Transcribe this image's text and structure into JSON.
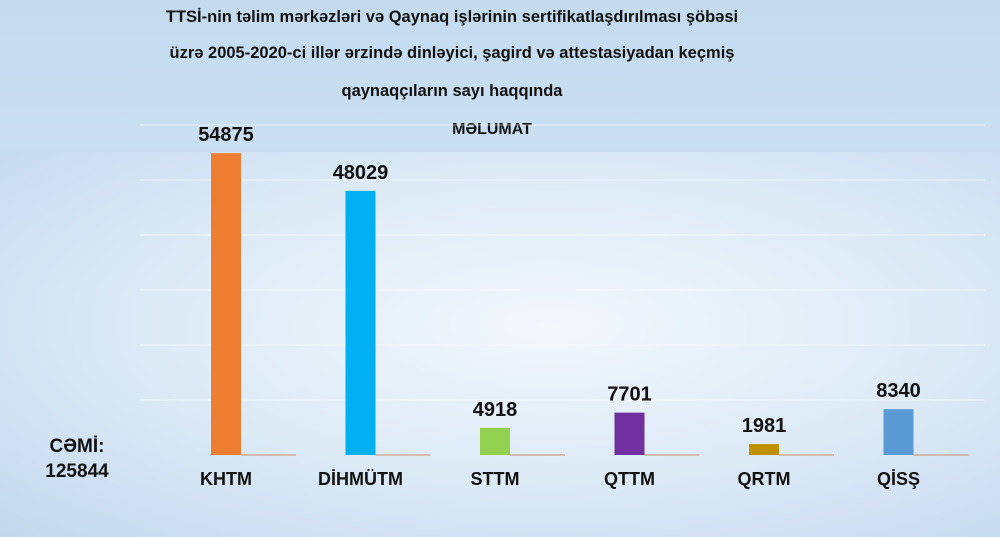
{
  "title": {
    "line1": "TTSİ-nin təlim mərkəzləri və Qaynaq işlərinin sertifikatlaşdırılması şöbəsi",
    "line2": "üzrə 2005-2020-ci illər ərzində dinləyici, şagird və attestasiyadan keçmiş",
    "line3": "qaynaqçıların sayı haqqında",
    "line4": "MƏLUMAT"
  },
  "total": {
    "label": "CƏMİ:",
    "value": "125844"
  },
  "chart_data": {
    "type": "bar",
    "title": "TTSİ-nin təlim mərkəzləri və Qaynaq işlərinin sertifikatlaşdırılması şöbəsi üzrə 2005-2020-ci illər ərzində dinləyici, şagird və attestasiyadan keçmiş qaynaqçıların sayı haqqında MƏLUMAT",
    "categories": [
      "KHTM",
      "DİHMÜTM",
      "STTM",
      "QTTM",
      "QRTM",
      "QİSŞ"
    ],
    "values": [
      54875,
      48029,
      4918,
      7701,
      1981,
      8340
    ],
    "colors": [
      "#ed7d31",
      "#00b0f0",
      "#92d050",
      "#7030a0",
      "#bf9000",
      "#5b9bd5"
    ],
    "xlabel": "",
    "ylabel": "",
    "ylim": [
      0,
      60000
    ],
    "grid": true,
    "legend": "none"
  }
}
